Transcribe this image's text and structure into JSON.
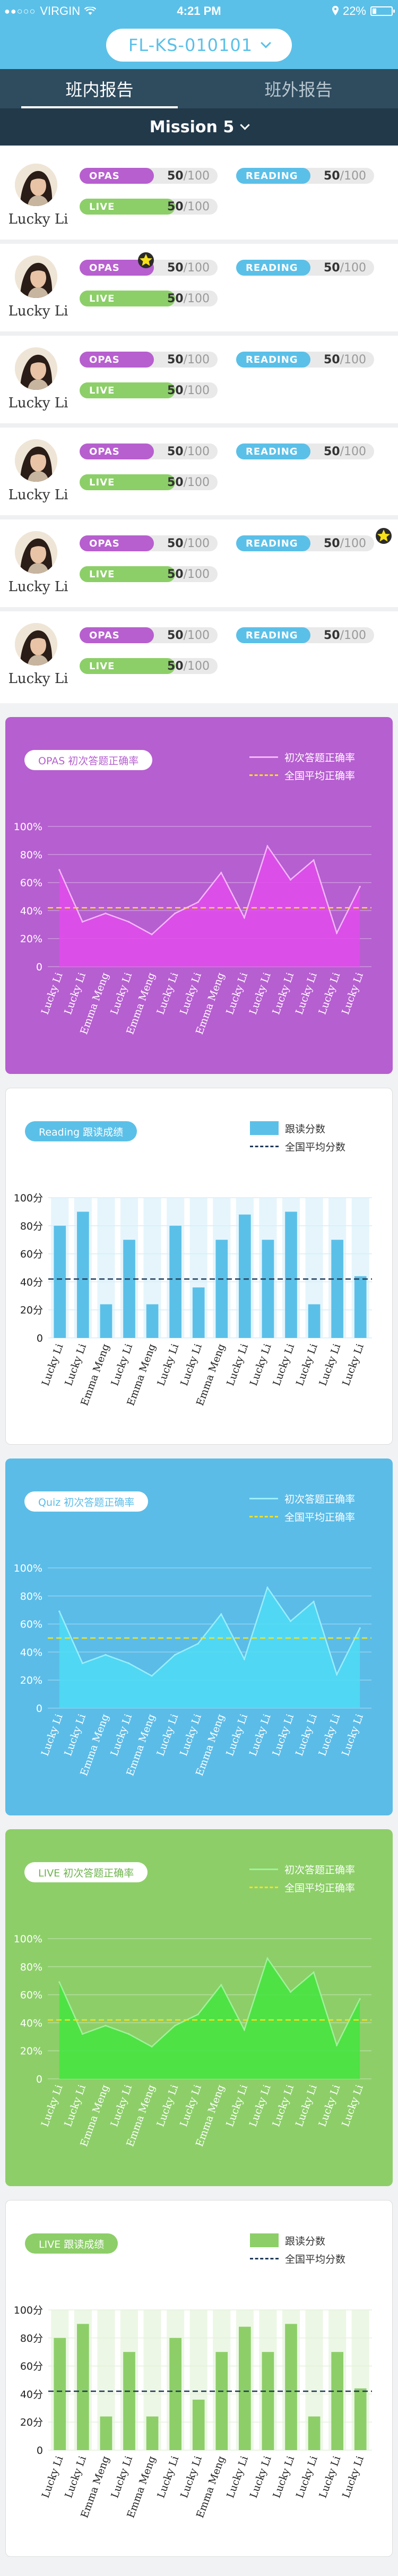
{
  "status_bar": {
    "carrier": "VIRGIN",
    "time": "4:21 PM",
    "battery_text": "22%",
    "battery_level": 0.22,
    "signal_dots": "●●○○○"
  },
  "header": {
    "class_code": "FL-KS-010101"
  },
  "tabs": [
    {
      "label": "班内报告",
      "active": true
    },
    {
      "label": "班外报告",
      "active": false
    }
  ],
  "mission": {
    "label": "Mission 5"
  },
  "metrics_labels": {
    "opas": "OPAS",
    "reading": "READING",
    "live": "LIVE",
    "total": "100",
    "sep": "/"
  },
  "students": [
    {
      "name": "Lucky Li",
      "opas": "50",
      "reading": "50",
      "live": "50",
      "star": "none"
    },
    {
      "name": "Lucky Li",
      "opas": "50",
      "reading": "50",
      "live": "50",
      "star": "opas"
    },
    {
      "name": "Lucky Li",
      "opas": "50",
      "reading": "50",
      "live": "50",
      "star": "none"
    },
    {
      "name": "Lucky Li",
      "opas": "50",
      "reading": "50",
      "live": "50",
      "star": "none"
    },
    {
      "name": "Lucky Li",
      "opas": "50",
      "reading": "50",
      "live": "50",
      "star": "reading"
    },
    {
      "name": "Lucky Li",
      "opas": "50",
      "reading": "50",
      "live": "50",
      "star": "none"
    }
  ],
  "colors": {
    "brand_blue": "#5bc0e8",
    "opas_purple": "#b65fd0",
    "live_green": "#8dce69",
    "avg_yellow": "#f5e21c",
    "avg_navy": "#1f3a57"
  },
  "chart_data": [
    {
      "type": "area",
      "title": "OPAS 初次答题正确率",
      "legend": [
        "初次答题正确率",
        "全国平均正确率"
      ],
      "categories": [
        "Lucky Li",
        "Lucky Li",
        "Emma Meng",
        "Lucky Li",
        "Emma Meng",
        "Lucky Li",
        "Lucky Li",
        "Emma Meng",
        "Lucky Li",
        "Lucky Li",
        "Lucky Li",
        "Lucky Li",
        "Lucky Li",
        "Lucky Li"
      ],
      "values": [
        69,
        32,
        38,
        32,
        23,
        38,
        46,
        67,
        35,
        86,
        62,
        76,
        24,
        57
      ],
      "average": 42,
      "yticks": [
        "100%",
        "80%",
        "60%",
        "40%",
        "20%",
        "0"
      ],
      "ylim": [
        0,
        100
      ],
      "grid": true
    },
    {
      "type": "bar",
      "title": "Reading 跟读成绩",
      "legend": [
        "跟读分数",
        "全国平均分数"
      ],
      "categories": [
        "Lucky Li",
        "Lucky Li",
        "Emma Meng",
        "Lucky Li",
        "Emma Meng",
        "Lucky Li",
        "Lucky Li",
        "Emma Meng",
        "Lucky Li",
        "Lucky Li",
        "Lucky Li",
        "Lucky Li",
        "Lucky Li",
        "Lucky Li"
      ],
      "values": [
        80,
        90,
        24,
        70,
        24,
        80,
        36,
        70,
        88,
        70,
        90,
        24,
        70,
        44
      ],
      "average": 42,
      "yticks": [
        "100分",
        "80分",
        "60分",
        "40分",
        "20分",
        "0"
      ],
      "ylim": [
        0,
        100
      ],
      "grid": true
    },
    {
      "type": "area",
      "title": "Quiz 初次答题正确率",
      "legend": [
        "初次答题正确率",
        "全国平均正确率"
      ],
      "categories": [
        "Lucky Li",
        "Lucky Li",
        "Emma Meng",
        "Lucky Li",
        "Emma Meng",
        "Lucky Li",
        "Lucky Li",
        "Emma Meng",
        "Lucky Li",
        "Lucky Li",
        "Lucky Li",
        "Lucky Li",
        "Lucky Li",
        "Lucky Li"
      ],
      "values": [
        69,
        32,
        38,
        32,
        23,
        38,
        46,
        67,
        35,
        86,
        62,
        76,
        24,
        57
      ],
      "average": 50,
      "yticks": [
        "100%",
        "80%",
        "60%",
        "40%",
        "20%",
        "0"
      ],
      "ylim": [
        0,
        100
      ],
      "grid": true
    },
    {
      "type": "area",
      "title": "LIVE 初次答题正确率",
      "legend": [
        "初次答题正确率",
        "全国平均正确率"
      ],
      "categories": [
        "Lucky Li",
        "Lucky Li",
        "Emma Meng",
        "Lucky Li",
        "Emma Meng",
        "Lucky Li",
        "Lucky Li",
        "Emma Meng",
        "Lucky Li",
        "Lucky Li",
        "Lucky Li",
        "Lucky Li",
        "Lucky Li",
        "Lucky Li"
      ],
      "values": [
        69,
        32,
        38,
        32,
        23,
        38,
        46,
        67,
        35,
        86,
        62,
        76,
        24,
        57
      ],
      "average": 42,
      "yticks": [
        "100%",
        "80%",
        "60%",
        "40%",
        "20%",
        "0"
      ],
      "ylim": [
        0,
        100
      ],
      "grid": true
    },
    {
      "type": "bar",
      "title": "LIVE 跟读成绩",
      "legend": [
        "跟读分数",
        "全国平均分数"
      ],
      "categories": [
        "Lucky Li",
        "Lucky Li",
        "Emma Meng",
        "Lucky Li",
        "Emma Meng",
        "Lucky Li",
        "Lucky Li",
        "Emma Meng",
        "Lucky Li",
        "Lucky Li",
        "Lucky Li",
        "Lucky Li",
        "Lucky Li",
        "Lucky Li"
      ],
      "values": [
        80,
        90,
        24,
        70,
        24,
        80,
        36,
        70,
        88,
        70,
        90,
        24,
        70,
        44
      ],
      "average": 42,
      "yticks": [
        "100分",
        "80分",
        "60分",
        "40分",
        "20分",
        "0"
      ],
      "ylim": [
        0,
        100
      ],
      "grid": true
    }
  ]
}
